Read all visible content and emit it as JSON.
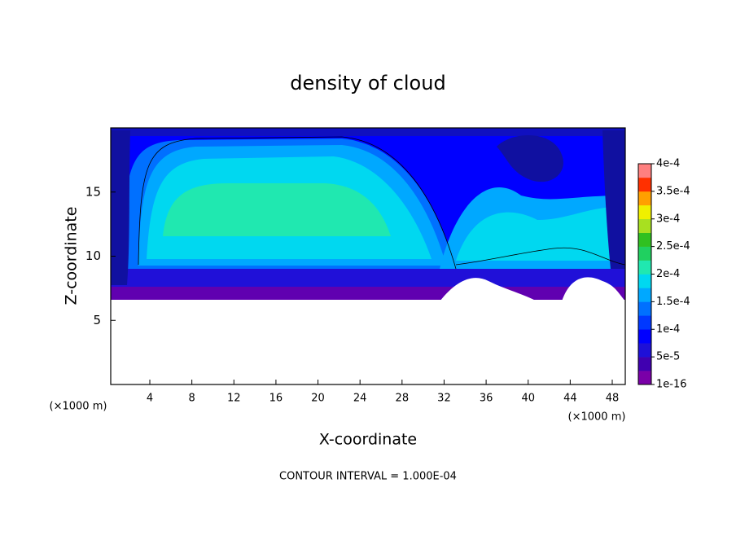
{
  "chart_data": {
    "type": "contour",
    "title": "density of cloud",
    "xlabel": "X-coordinate",
    "ylabel": "Z-coordinate",
    "xunit": "(×1000 m)",
    "yunit": "(×1000 m)",
    "footnote": "CONTOUR INTERVAL = 1.000E-04",
    "xlim": [
      0.28,
      49.24
    ],
    "ylim": [
      0,
      20
    ],
    "xticks": [
      4,
      8,
      12,
      16,
      20,
      24,
      28,
      32,
      36,
      40,
      44,
      48
    ],
    "yticks": [
      5,
      10,
      15
    ],
    "colorbar": {
      "lim": [
        1e-16,
        0.0004
      ],
      "ticks": [
        {
          "value": 1e-16,
          "label": "1e-16"
        },
        {
          "value": 5e-05,
          "label": "5e-5"
        },
        {
          "value": 0.0001,
          "label": "1e-4"
        },
        {
          "value": 0.00015,
          "label": "1.5e-4"
        },
        {
          "value": 0.0002,
          "label": "2e-4"
        },
        {
          "value": 0.00025,
          "label": "2.5e-4"
        },
        {
          "value": 0.0003,
          "label": "3e-4"
        },
        {
          "value": 0.00035,
          "label": "3.5e-4"
        },
        {
          "value": 0.0004,
          "label": "4e-4"
        }
      ],
      "colors": [
        "#7a00a8",
        "#4000b0",
        "#1e10d8",
        "#0000ff",
        "#0038ff",
        "#0070ff",
        "#00a8ff",
        "#00d8f0",
        "#20e8b0",
        "#20d060",
        "#30c020",
        "#a8e020",
        "#f0f000",
        "#ffa000",
        "#ff3000",
        "#ff8080"
      ]
    }
  }
}
